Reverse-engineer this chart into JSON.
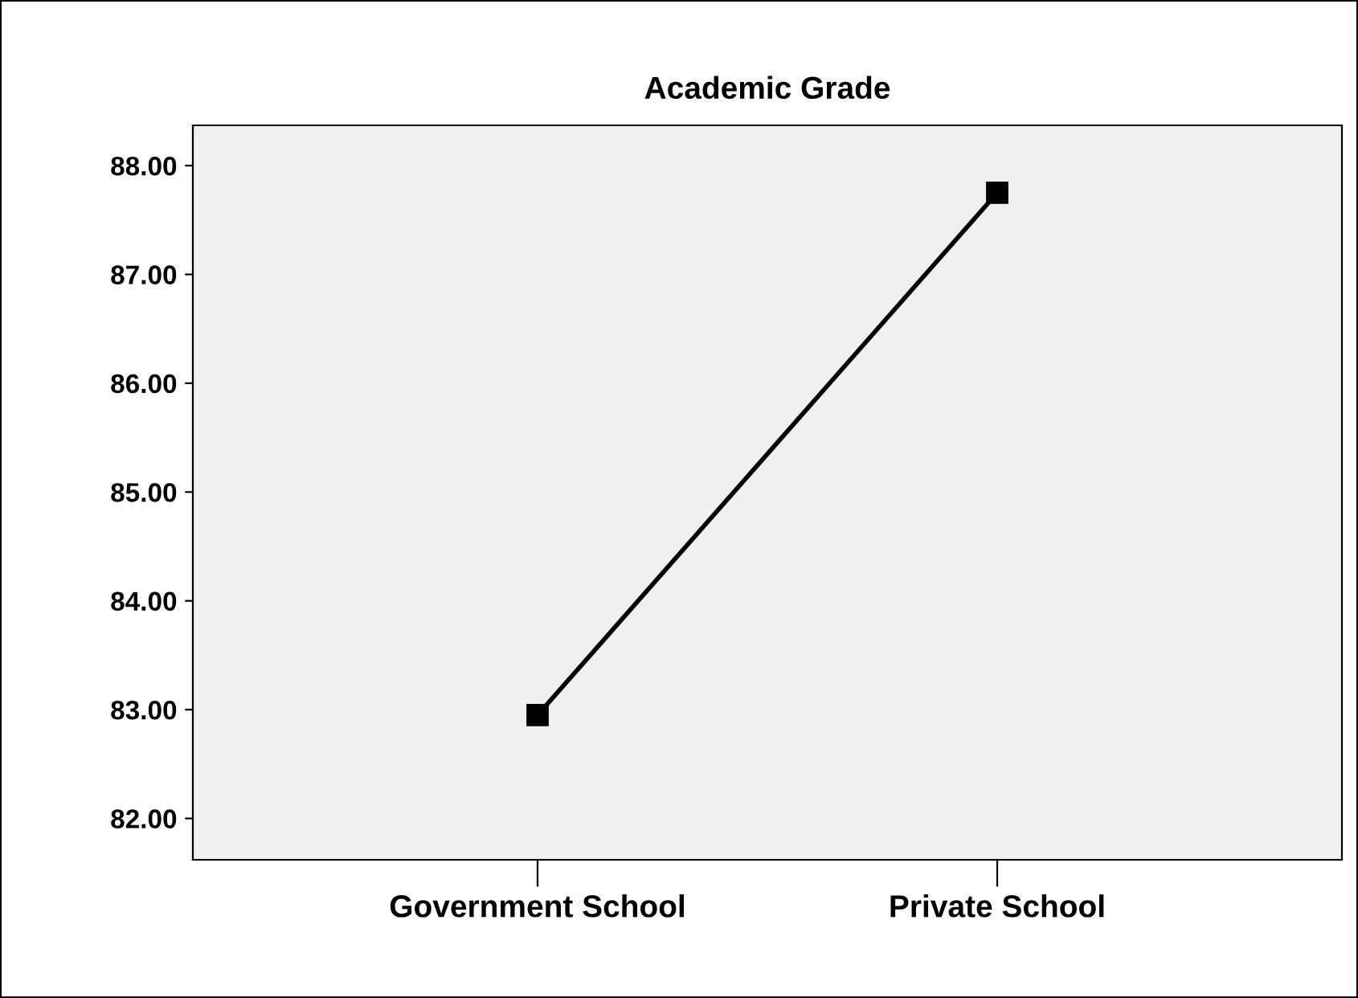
{
  "chart_data": {
    "type": "line",
    "title": "Academic Grade",
    "categories": [
      "Government School",
      "Private School"
    ],
    "series": [
      {
        "color": "#000000",
        "values": [
          82.95,
          87.75
        ]
      }
    ],
    "ylim": [
      81.62,
      88.37
    ],
    "yticks": [
      {
        "value": 82,
        "label": "82.00"
      },
      {
        "value": 83,
        "label": "83.00"
      },
      {
        "value": 84,
        "label": "84.00"
      },
      {
        "value": 85,
        "label": "85.00"
      },
      {
        "value": 86,
        "label": "86.00"
      },
      {
        "value": 87,
        "label": "87.00"
      },
      {
        "value": 88,
        "label": "88.00"
      }
    ],
    "marker": "square",
    "line_style": "solid",
    "grid": false,
    "legend": false
  }
}
